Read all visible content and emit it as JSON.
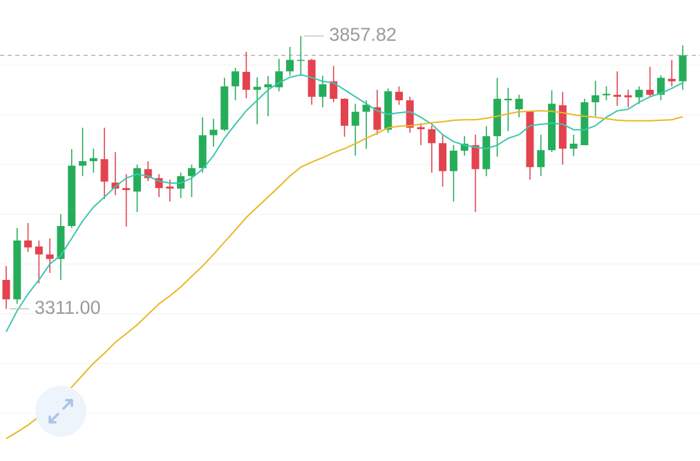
{
  "chart_data": {
    "type": "candlestick",
    "ylim": [
      3006,
      3930
    ],
    "colors": {
      "up": "#26ad5a",
      "down": "#e2434f"
    },
    "open": [
      3369,
      3330,
      3448,
      3436,
      3420,
      3411,
      3477,
      3598,
      3607,
      3611,
      3564,
      3553,
      3546,
      3591,
      3573,
      3556,
      3552,
      3577,
      3593,
      3659,
      3670,
      3757,
      3786,
      3750,
      3755,
      3755,
      3787,
      3808,
      3810,
      3736,
      3767,
      3732,
      3678,
      3706,
      3715,
      3670,
      3746,
      3729,
      3675,
      3671,
      3643,
      3587,
      3628,
      3639,
      3591,
      3657,
      3729,
      3711,
      3706,
      3595,
      3629,
      3719,
      3632,
      3639,
      3725,
      3739,
      3740,
      3739,
      3735,
      3750,
      3740,
      3772,
      3767
    ],
    "high": [
      3397,
      3473,
      3483,
      3448,
      3452,
      3501,
      3631,
      3674,
      3632,
      3674,
      3625,
      3581,
      3600,
      3607,
      3581,
      3570,
      3584,
      3600,
      3695,
      3692,
      3774,
      3794,
      3826,
      3775,
      3778,
      3812,
      3836,
      3857.82,
      3812,
      3778,
      3798,
      3733,
      3722,
      3729,
      3750,
      3753,
      3757,
      3736,
      3683,
      3678,
      3660,
      3639,
      3657,
      3660,
      3677,
      3774,
      3754,
      3740,
      3708,
      3660,
      3749,
      3746,
      3660,
      3732,
      3768,
      3757,
      3787,
      3750,
      3757,
      3796,
      3779,
      3810,
      3839
    ],
    "low": [
      3311,
      3321,
      3425,
      3362,
      3383,
      3369,
      3473,
      3577,
      3584,
      3531,
      3539,
      3476,
      3505,
      3567,
      3535,
      3526,
      3533,
      3535,
      3584,
      3636,
      3667,
      3729,
      3733,
      3681,
      3697,
      3747,
      3778,
      3778,
      3720,
      3715,
      3725,
      3656,
      3618,
      3632,
      3660,
      3664,
      3720,
      3664,
      3639,
      3584,
      3556,
      3526,
      3618,
      3505,
      3577,
      3616,
      3667,
      3695,
      3570,
      3577,
      3625,
      3600,
      3617,
      3639,
      3697,
      3729,
      3718,
      3715,
      3722,
      3736,
      3729,
      3757,
      3750
    ],
    "close": [
      3330,
      3448,
      3434,
      3420,
      3411,
      3477,
      3598,
      3607,
      3613,
      3566,
      3552,
      3549,
      3593,
      3573,
      3553,
      3552,
      3577,
      3593,
      3659,
      3670,
      3757,
      3787,
      3750,
      3756,
      3761,
      3787,
      3810,
      3810,
      3736,
      3761,
      3732,
      3678,
      3706,
      3720,
      3670,
      3747,
      3729,
      3674,
      3671,
      3643,
      3587,
      3628,
      3642,
      3591,
      3657,
      3732,
      3732,
      3732,
      3595,
      3629,
      3722,
      3632,
      3642,
      3725,
      3739,
      3742,
      3736,
      3735,
      3750,
      3740,
      3774,
      3767,
      3819
    ],
    "series": [
      {
        "color": "#3cc7ad",
        "values": [
          3265,
          3307,
          3341,
          3369,
          3401,
          3418,
          3452,
          3487,
          3515,
          3535,
          3556,
          3573,
          3581,
          3577,
          3567,
          3563,
          3563,
          3573,
          3591,
          3618,
          3653,
          3681,
          3708,
          3729,
          3750,
          3764,
          3775,
          3780,
          3775,
          3767,
          3764,
          3750,
          3736,
          3722,
          3708,
          3701,
          3704,
          3706,
          3695,
          3681,
          3660,
          3646,
          3639,
          3635,
          3632,
          3639,
          3653,
          3660,
          3678,
          3681,
          3683,
          3681,
          3670,
          3670,
          3678,
          3695,
          3708,
          3711,
          3725,
          3736,
          3743,
          3753,
          3764
        ]
      },
      {
        "color": "#e8b824",
        "values": [
          3051,
          3064,
          3078,
          3095,
          3112,
          3134,
          3154,
          3178,
          3202,
          3222,
          3244,
          3261,
          3279,
          3300,
          3321,
          3337,
          3355,
          3376,
          3397,
          3420,
          3445,
          3469,
          3494,
          3515,
          3535,
          3556,
          3577,
          3595,
          3605,
          3614,
          3624,
          3632,
          3642,
          3653,
          3663,
          3674,
          3677,
          3678,
          3681,
          3684,
          3686,
          3689,
          3690,
          3690,
          3693,
          3697,
          3702,
          3706,
          3707,
          3708,
          3707,
          3704,
          3700,
          3697,
          3695,
          3692,
          3689,
          3688,
          3688,
          3688,
          3689,
          3690,
          3696
        ]
      }
    ],
    "last_price": 3819,
    "annotations": [
      {
        "label": "3857.82",
        "value": 3857.82
      },
      {
        "label": "3311.00",
        "value": 3311
      }
    ]
  }
}
